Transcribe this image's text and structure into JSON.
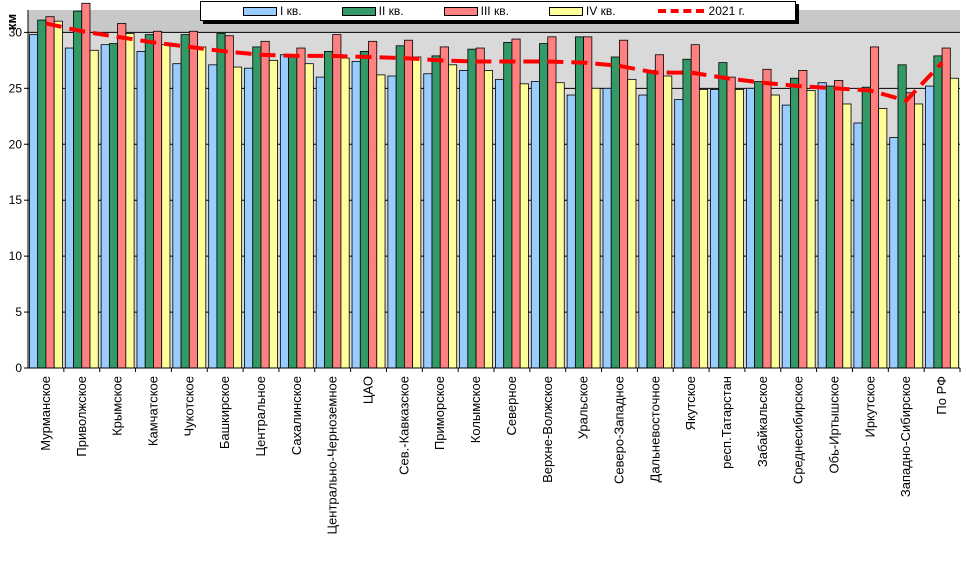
{
  "chart_data": {
    "type": "bar",
    "ylabel": "км",
    "ylim": [
      0,
      32
    ],
    "yticks": [
      0,
      5,
      10,
      15,
      20,
      25,
      30
    ],
    "grid": true,
    "legend_position": "top",
    "categories": [
      "Мурманское",
      "Приволжское",
      "Крымское",
      "Камчатское",
      "Чукотское",
      "Башкирское",
      "Центральное",
      "Сахалинское",
      "Центрально-Черноземное",
      "ЦАО",
      "Сев.-Кавказское",
      "Приморское",
      "Колымское",
      "Северное",
      "Верхне-Волжское",
      "Уральское",
      "Северо-Западное",
      "Дальневосточное",
      "Якутское",
      "респ.Татарстан",
      "Забайкальское",
      "Среднесибирское",
      "Обь-Иртышское",
      "Иркутское",
      "Западно-Сибирское",
      "По РФ"
    ],
    "series": [
      {
        "name": "I кв.",
        "color": "#99ccff",
        "values": [
          29.8,
          28.6,
          28.9,
          28.3,
          27.2,
          27.1,
          26.8,
          28.0,
          26.0,
          27.4,
          26.1,
          26.3,
          26.6,
          25.8,
          25.6,
          24.4,
          25.0,
          24.4,
          24.0,
          24.9,
          25.0,
          23.5,
          25.5,
          21.9,
          20.6,
          25.2
        ]
      },
      {
        "name": "II кв.",
        "color": "#339966",
        "values": [
          31.1,
          31.9,
          29.0,
          29.8,
          29.8,
          29.9,
          28.7,
          28.0,
          28.3,
          28.3,
          28.8,
          27.9,
          28.5,
          29.1,
          29.0,
          29.6,
          27.8,
          26.6,
          27.6,
          27.3,
          25.6,
          25.9,
          25.2,
          25.1,
          27.1,
          27.9
        ]
      },
      {
        "name": "III кв.",
        "color": "#ff8080",
        "values": [
          31.4,
          32.6,
          30.8,
          30.1,
          30.1,
          29.7,
          29.2,
          28.6,
          29.8,
          29.2,
          29.3,
          28.7,
          28.6,
          29.4,
          29.6,
          29.6,
          29.3,
          28.0,
          28.9,
          26.0,
          26.7,
          26.6,
          25.7,
          28.7,
          24.6,
          28.6
        ]
      },
      {
        "name": "IV кв.",
        "color": "#ffff99",
        "values": [
          31.0,
          28.4,
          29.9,
          28.9,
          28.7,
          26.9,
          27.5,
          27.2,
          27.7,
          26.2,
          27.8,
          27.1,
          26.6,
          25.4,
          25.5,
          25.0,
          25.8,
          26.1,
          24.9,
          24.9,
          24.4,
          24.8,
          23.6,
          23.2,
          23.6,
          25.9
        ]
      },
      {
        "name": "2021 г.",
        "type": "line",
        "color": "#ff0000",
        "values": [
          30.8,
          30.1,
          29.6,
          29.1,
          28.7,
          28.3,
          28.0,
          27.9,
          27.9,
          27.8,
          27.7,
          27.5,
          27.4,
          27.4,
          27.4,
          27.3,
          27.0,
          26.4,
          26.4,
          25.9,
          25.5,
          25.2,
          25.0,
          24.8,
          23.9,
          27.3
        ]
      }
    ]
  }
}
